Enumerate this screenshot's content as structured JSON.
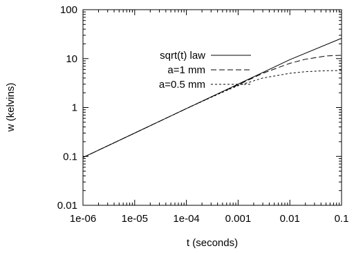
{
  "chart_data": {
    "type": "line",
    "xlabel": "t (seconds)",
    "ylabel": "w (kelvins)",
    "x_scale": "log",
    "y_scale": "log",
    "xlim": [
      1e-06,
      0.1
    ],
    "ylim": [
      0.01,
      100
    ],
    "x_ticks": [
      {
        "value": 1e-06,
        "label": "1e-06"
      },
      {
        "value": 1e-05,
        "label": "1e-05"
      },
      {
        "value": 0.0001,
        "label": "1e-04"
      },
      {
        "value": 0.001,
        "label": "0.001"
      },
      {
        "value": 0.01,
        "label": "0.01"
      },
      {
        "value": 0.1,
        "label": "0.1"
      }
    ],
    "y_ticks": [
      {
        "value": 0.01,
        "label": "0.01"
      },
      {
        "value": 0.1,
        "label": "0.1"
      },
      {
        "value": 1,
        "label": "1"
      },
      {
        "value": 10,
        "label": "10"
      },
      {
        "value": 100,
        "label": "100"
      }
    ],
    "grid": false,
    "legend_position": "top-left",
    "series": [
      {
        "name": "sqrt(t) law",
        "style": "solid",
        "x": [
          1e-06,
          1e-05,
          0.0001,
          0.001,
          0.01,
          0.1
        ],
        "y": [
          0.095,
          0.3,
          0.95,
          3.0,
          9.5,
          26
        ]
      },
      {
        "name": "a=1 mm",
        "style": "dashed",
        "x": [
          1e-06,
          1e-05,
          0.0001,
          0.0005,
          0.001,
          0.003,
          0.01,
          0.02,
          0.05,
          0.1
        ],
        "y": [
          0.095,
          0.3,
          0.95,
          2.1,
          2.9,
          5.0,
          8.0,
          9.7,
          11.3,
          11.7
        ]
      },
      {
        "name": "a=0.5 mm",
        "style": "dotted",
        "x": [
          1e-06,
          1e-05,
          0.0001,
          0.0005,
          0.001,
          0.003,
          0.01,
          0.02,
          0.05,
          0.1
        ],
        "y": [
          0.095,
          0.3,
          0.95,
          2.05,
          2.8,
          4.0,
          5.0,
          5.4,
          5.65,
          5.7
        ]
      }
    ]
  }
}
